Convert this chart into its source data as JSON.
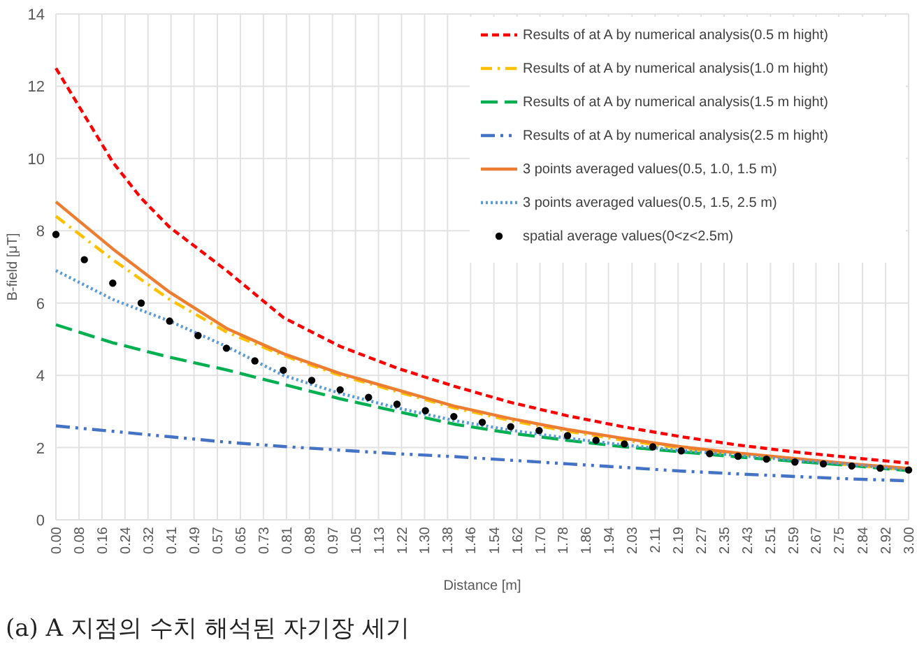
{
  "chart_data": {
    "type": "line",
    "xlabel": "Distance [m]",
    "ylabel": "B-field [μT]",
    "annotations": [
      "(a) A 지점의 수치 해석된 자기장 세기"
    ],
    "xlim": [
      0,
      3
    ],
    "ylim": [
      0,
      14
    ],
    "yticks": [
      0,
      2,
      4,
      6,
      8,
      10,
      12,
      14
    ],
    "xticks": [
      {
        "value": 0,
        "label": "0.00"
      },
      {
        "value": 0.081,
        "label": "0.08"
      },
      {
        "value": 0.162,
        "label": "0.16"
      },
      {
        "value": 0.243,
        "label": "0.24"
      },
      {
        "value": 0.324,
        "label": "0.32"
      },
      {
        "value": 0.405,
        "label": "0.41"
      },
      {
        "value": 0.486,
        "label": "0.49"
      },
      {
        "value": 0.568,
        "label": "0.57"
      },
      {
        "value": 0.649,
        "label": "0.65"
      },
      {
        "value": 0.73,
        "label": "0.73"
      },
      {
        "value": 0.811,
        "label": "0.81"
      },
      {
        "value": 0.892,
        "label": "0.89"
      },
      {
        "value": 0.973,
        "label": "0.97"
      },
      {
        "value": 1.054,
        "label": "1.05"
      },
      {
        "value": 1.135,
        "label": "1.13"
      },
      {
        "value": 1.216,
        "label": "1.22"
      },
      {
        "value": 1.297,
        "label": "1.30"
      },
      {
        "value": 1.378,
        "label": "1.38"
      },
      {
        "value": 1.459,
        "label": "1.46"
      },
      {
        "value": 1.541,
        "label": "1.54"
      },
      {
        "value": 1.622,
        "label": "1.62"
      },
      {
        "value": 1.703,
        "label": "1.70"
      },
      {
        "value": 1.784,
        "label": "1.78"
      },
      {
        "value": 1.865,
        "label": "1.86"
      },
      {
        "value": 1.944,
        "label": "1.94"
      },
      {
        "value": 2.027,
        "label": "2.03"
      },
      {
        "value": 2.108,
        "label": "2.11"
      },
      {
        "value": 2.189,
        "label": "2.19"
      },
      {
        "value": 2.27,
        "label": "2.27"
      },
      {
        "value": 2.351,
        "label": "2.35"
      },
      {
        "value": 2.432,
        "label": "2.43"
      },
      {
        "value": 2.514,
        "label": "2.51"
      },
      {
        "value": 2.595,
        "label": "2.59"
      },
      {
        "value": 2.674,
        "label": "2.67"
      },
      {
        "value": 2.754,
        "label": "2.75"
      },
      {
        "value": 2.838,
        "label": "2.84"
      },
      {
        "value": 2.919,
        "label": "2.92"
      },
      {
        "value": 3,
        "label": "3.00"
      }
    ],
    "grid": true,
    "legend": "top right",
    "series": [
      {
        "name": "Results of at A by numerical analysis(0.5 m hight)",
        "color": "#ff0000",
        "line_style": "dashed",
        "x": [
          0,
          0.1,
          0.2,
          0.3,
          0.4,
          0.5,
          0.6,
          0.8,
          1.0,
          1.2,
          1.4,
          1.6,
          1.8,
          2.0,
          2.2,
          2.4,
          2.6,
          2.8,
          3.0
        ],
        "values": [
          12.5,
          11.2,
          9.9,
          8.9,
          8.1,
          7.5,
          6.9,
          5.6,
          4.8,
          4.2,
          3.7,
          3.25,
          2.88,
          2.57,
          2.3,
          2.07,
          1.88,
          1.72,
          1.57
        ]
      },
      {
        "name": "Results of at A by numerical analysis(1.0 m hight)",
        "color": "#ffc000",
        "line_style": "dashed",
        "x": [
          0,
          0.2,
          0.4,
          0.6,
          0.8,
          1.0,
          1.2,
          1.4,
          1.6,
          1.8,
          2.0,
          2.2,
          2.4,
          2.6,
          2.8,
          3.0
        ],
        "values": [
          8.4,
          7.2,
          6.1,
          5.2,
          4.55,
          4.0,
          3.55,
          3.1,
          2.75,
          2.45,
          2.2,
          1.98,
          1.81,
          1.66,
          1.51,
          1.38
        ]
      },
      {
        "name": "Results of at A by numerical analysis(1.5 m hight)",
        "color": "#00b050",
        "line_style": "dashed",
        "x": [
          0,
          0.2,
          0.4,
          0.6,
          0.8,
          1.0,
          1.2,
          1.4,
          1.6,
          1.8,
          2.0,
          2.2,
          2.4,
          2.6,
          2.8,
          3.0
        ],
        "values": [
          5.4,
          4.9,
          4.5,
          4.15,
          3.75,
          3.35,
          3.0,
          2.65,
          2.4,
          2.2,
          2.02,
          1.88,
          1.74,
          1.62,
          1.5,
          1.36
        ]
      },
      {
        "name": "Results of at A by numerical analysis(2.5 m hight)",
        "color": "#4472c4",
        "line_style": "dashed",
        "x": [
          0,
          0.2,
          0.4,
          0.6,
          0.8,
          1.0,
          1.2,
          1.4,
          1.6,
          1.8,
          2.0,
          2.2,
          2.4,
          2.6,
          2.8,
          3.0
        ],
        "values": [
          2.6,
          2.45,
          2.3,
          2.15,
          2.03,
          1.93,
          1.83,
          1.75,
          1.65,
          1.55,
          1.45,
          1.35,
          1.27,
          1.2,
          1.13,
          1.08
        ]
      },
      {
        "name": "3 points averaged values(0.5, 1.0, 1.5 m)",
        "color": "#ed7d31",
        "line_style": "solid",
        "x": [
          0,
          0.2,
          0.4,
          0.6,
          0.8,
          1.0,
          1.2,
          1.4,
          1.6,
          1.8,
          2.0,
          2.2,
          2.4,
          2.6,
          2.8,
          3.0
        ],
        "values": [
          8.8,
          7.5,
          6.3,
          5.3,
          4.6,
          4.05,
          3.6,
          3.15,
          2.8,
          2.5,
          2.25,
          2.02,
          1.85,
          1.7,
          1.55,
          1.42
        ]
      },
      {
        "name": "3 points averaged values(0.5, 1.5, 2.5 m)",
        "color": "#5b9bd5",
        "line_style": "dotted",
        "x": [
          0,
          0.2,
          0.4,
          0.6,
          0.8,
          1.0,
          1.2,
          1.4,
          1.6,
          1.8,
          2.0,
          2.2,
          2.4,
          2.6,
          2.8,
          3.0
        ],
        "values": [
          6.9,
          6.1,
          5.5,
          4.8,
          4.0,
          3.5,
          3.1,
          2.75,
          2.48,
          2.26,
          2.07,
          1.92,
          1.78,
          1.65,
          1.53,
          1.38
        ]
      },
      {
        "name": "spatial average values(0<z<2.5m)",
        "type": "scatter",
        "marker": "circle",
        "color": "#000000",
        "x": [
          0,
          0.1,
          0.2,
          0.3,
          0.4,
          0.5,
          0.6,
          0.7,
          0.8,
          0.9,
          1.0,
          1.1,
          1.2,
          1.3,
          1.4,
          1.5,
          1.6,
          1.7,
          1.8,
          1.9,
          2.0,
          2.1,
          2.2,
          2.3,
          2.4,
          2.5,
          2.6,
          2.7,
          2.8,
          2.9,
          3.0
        ],
        "values": [
          7.9,
          7.2,
          6.55,
          6.0,
          5.5,
          5.1,
          4.75,
          4.4,
          4.14,
          3.86,
          3.6,
          3.39,
          3.2,
          3.02,
          2.86,
          2.7,
          2.58,
          2.47,
          2.33,
          2.2,
          2.1,
          2.02,
          1.91,
          1.83,
          1.76,
          1.68,
          1.6,
          1.55,
          1.49,
          1.43,
          1.38
        ]
      }
    ]
  }
}
